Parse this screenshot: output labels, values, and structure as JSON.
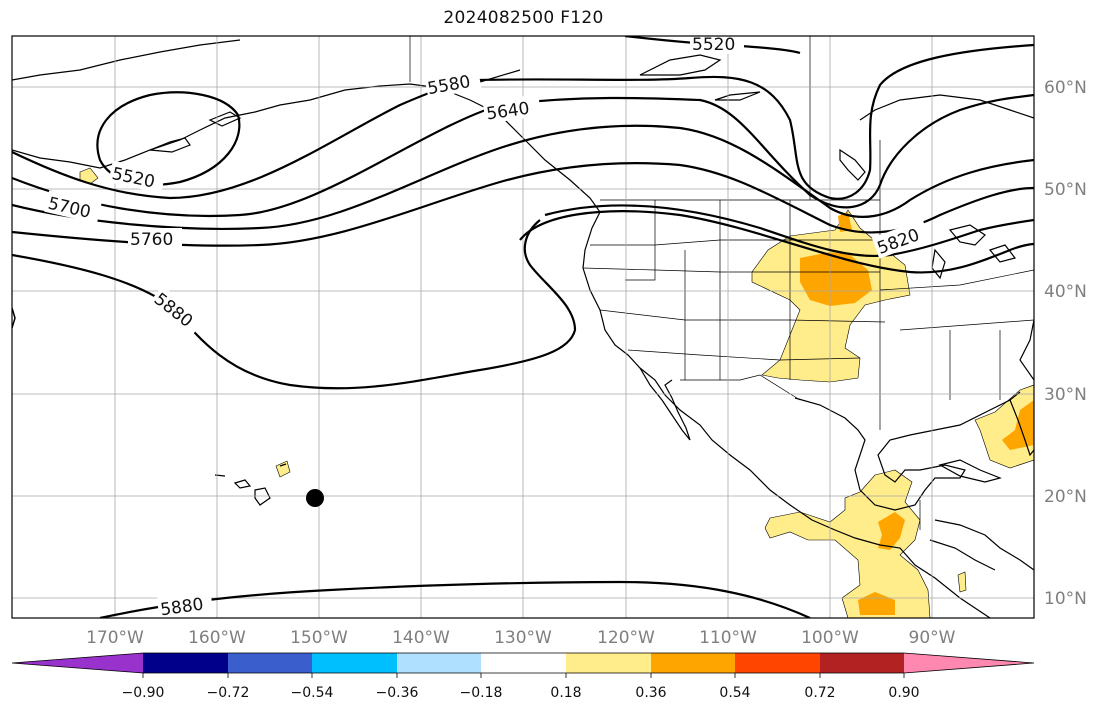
{
  "title": "2024082500 F120",
  "map": {
    "lon_labels": [
      "170°W",
      "160°W",
      "150°W",
      "140°W",
      "130°W",
      "120°W",
      "110°W",
      "100°W",
      "90°W"
    ],
    "lat_labels": [
      "60°N",
      "50°N",
      "40°N",
      "30°N",
      "20°N",
      "10°N"
    ],
    "contour_labels": [
      "5520",
      "5580",
      "5640",
      "5520",
      "5700",
      "5760",
      "5820",
      "5880",
      "5880"
    ],
    "storm_marker": "tropical-cyclone-position",
    "colors": {
      "contour": "#000000",
      "coast": "#000000",
      "grid": "#a0a0a0",
      "fill_0_18_0_36": "#ffec8b",
      "fill_0_36_0_54": "#ffa500"
    }
  },
  "colorbar": {
    "ticks": [
      "−0.90",
      "−0.72",
      "−0.54",
      "−0.36",
      "−0.18",
      "0.18",
      "0.36",
      "0.54",
      "0.72",
      "0.90"
    ],
    "colors": [
      "#9932cc",
      "#00008b",
      "#3a5fcd",
      "#00bfff",
      "#afe0ff",
      "#ffffff",
      "#ffec8b",
      "#ffa500",
      "#ff4500",
      "#b22222",
      "#ff88b0"
    ]
  }
}
